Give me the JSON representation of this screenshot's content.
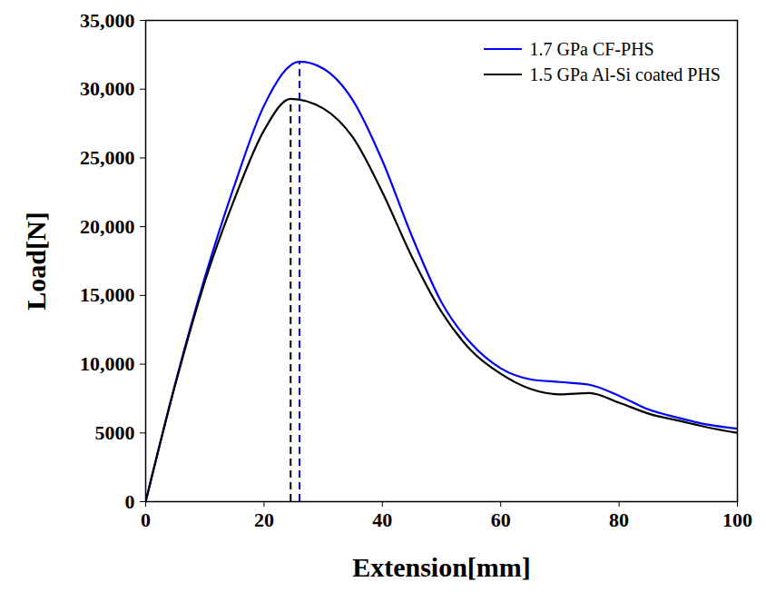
{
  "chart_data": {
    "type": "line",
    "x_label": "Extension[mm]",
    "y_label": "Load[N]",
    "xlim": [
      0,
      100
    ],
    "xticks": [
      0,
      20,
      40,
      60,
      80,
      100
    ],
    "ylim": [
      0,
      35000
    ],
    "yticks": [
      0,
      5000,
      {
        "value": 10000,
        "label": "10,000"
      },
      {
        "value": 15000,
        "label": "15,000"
      },
      {
        "value": 20000,
        "label": "20,000"
      },
      {
        "value": 25000,
        "label": "25,000"
      },
      {
        "value": 30000,
        "label": "30,000"
      },
      {
        "value": 35000,
        "label": "35,000"
      }
    ],
    "grid": false,
    "legend": "top-right",
    "series": [
      {
        "name": "1.7 GPa CF-PHS",
        "color": "#0000ff",
        "line_style": "solid",
        "x": [
          0,
          5,
          10,
          15,
          20,
          26,
          30,
          35,
          40,
          45,
          50,
          55,
          60,
          65,
          70,
          75,
          80,
          85,
          90,
          95,
          100
        ],
        "values": [
          0,
          8600,
          16300,
          23000,
          28800,
          32000,
          31500,
          29200,
          24800,
          19300,
          14500,
          11500,
          9700,
          8900,
          8700,
          8500,
          7700,
          6700,
          6100,
          5600,
          5300
        ],
        "peak_x": 26
      },
      {
        "name": "1.5 GPa Al-Si coated PHS",
        "color": "#000000",
        "line_style": "solid",
        "x": [
          0,
          5,
          10,
          15,
          20,
          24.5,
          30,
          35,
          40,
          45,
          50,
          55,
          60,
          65,
          70,
          75,
          80,
          85,
          90,
          95,
          100
        ],
        "values": [
          0,
          8500,
          16000,
          22000,
          27000,
          29300,
          28600,
          26500,
          22500,
          17800,
          13800,
          11000,
          9300,
          8200,
          7800,
          7900,
          7200,
          6400,
          5900,
          5400,
          5000
        ],
        "peak_x": 24.5
      }
    ]
  }
}
